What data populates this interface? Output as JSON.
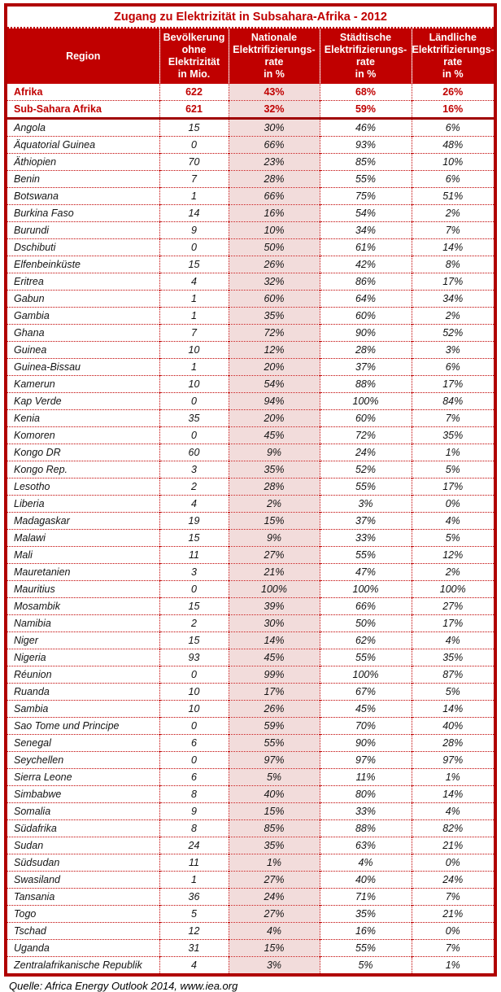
{
  "title": "Zugang zu Elektrizität in Subsahara-Afrika - 2012",
  "source_note": "Quelle: Africa Energy Outlook 2014, www.iea.org",
  "colors": {
    "header_bg": "#C00000",
    "accent_red": "#C00000",
    "summary_text": "#C00000",
    "highlight_column_bg": "#F2DCDB",
    "outer_border": "#B00000",
    "thick_separator": "#A00000"
  },
  "chart_data": {
    "type": "table",
    "title": "Zugang zu Elektrizität in Subsahara-Afrika - 2012",
    "columns": [
      "Region",
      "Bevölkerung ohne Elektrizität in Mio.",
      "Nationale Elektrifizierungsrate in %",
      "Städtische Elektrifizierungsrate in %",
      "Ländliche Elektrifizierungsrate in %"
    ],
    "header_lines": [
      [
        "Region"
      ],
      [
        "Bevölkerung",
        "ohne",
        "Elektrizität",
        "in Mio."
      ],
      [
        "Nationale",
        "Elektrifizierungs-",
        "rate",
        "in %"
      ],
      [
        "Städtische",
        "Elektrifizierungs-",
        "rate",
        "in %"
      ],
      [
        "Ländliche",
        "Elektrifizierungs-",
        "rate",
        "in %"
      ]
    ],
    "highlighted_column_index": 2,
    "summary_rows": [
      {
        "region": "Afrika",
        "values": [
          "622",
          "43%",
          "68%",
          "26%"
        ]
      },
      {
        "region": "Sub-Sahara Afrika",
        "values": [
          "621",
          "32%",
          "59%",
          "16%"
        ]
      }
    ],
    "rows": [
      {
        "region": "Angola",
        "values": [
          "15",
          "30%",
          "46%",
          "6%"
        ]
      },
      {
        "region": "Äquatorial Guinea",
        "values": [
          "0",
          "66%",
          "93%",
          "48%"
        ]
      },
      {
        "region": "Äthiopien",
        "values": [
          "70",
          "23%",
          "85%",
          "10%"
        ]
      },
      {
        "region": "Benin",
        "values": [
          "7",
          "28%",
          "55%",
          "6%"
        ]
      },
      {
        "region": "Botswana",
        "values": [
          "1",
          "66%",
          "75%",
          "51%"
        ]
      },
      {
        "region": "Burkina Faso",
        "values": [
          "14",
          "16%",
          "54%",
          "2%"
        ]
      },
      {
        "region": "Burundi",
        "values": [
          "9",
          "10%",
          "34%",
          "7%"
        ]
      },
      {
        "region": "Dschibuti",
        "values": [
          "0",
          "50%",
          "61%",
          "14%"
        ]
      },
      {
        "region": "Elfenbeinküste",
        "values": [
          "15",
          "26%",
          "42%",
          "8%"
        ]
      },
      {
        "region": "Eritrea",
        "values": [
          "4",
          "32%",
          "86%",
          "17%"
        ]
      },
      {
        "region": "Gabun",
        "values": [
          "1",
          "60%",
          "64%",
          "34%"
        ]
      },
      {
        "region": "Gambia",
        "values": [
          "1",
          "35%",
          "60%",
          "2%"
        ]
      },
      {
        "region": "Ghana",
        "values": [
          "7",
          "72%",
          "90%",
          "52%"
        ]
      },
      {
        "region": "Guinea",
        "values": [
          "10",
          "12%",
          "28%",
          "3%"
        ]
      },
      {
        "region": "Guinea-Bissau",
        "values": [
          "1",
          "20%",
          "37%",
          "6%"
        ]
      },
      {
        "region": "Kamerun",
        "values": [
          "10",
          "54%",
          "88%",
          "17%"
        ]
      },
      {
        "region": "Kap Verde",
        "values": [
          "0",
          "94%",
          "100%",
          "84%"
        ]
      },
      {
        "region": "Kenia",
        "values": [
          "35",
          "20%",
          "60%",
          "7%"
        ]
      },
      {
        "region": "Komoren",
        "values": [
          "0",
          "45%",
          "72%",
          "35%"
        ]
      },
      {
        "region": "Kongo DR",
        "values": [
          "60",
          "9%",
          "24%",
          "1%"
        ]
      },
      {
        "region": "Kongo Rep.",
        "values": [
          "3",
          "35%",
          "52%",
          "5%"
        ]
      },
      {
        "region": "Lesotho",
        "values": [
          "2",
          "28%",
          "55%",
          "17%"
        ]
      },
      {
        "region": "Liberia",
        "values": [
          "4",
          "2%",
          "3%",
          "0%"
        ]
      },
      {
        "region": "Madagaskar",
        "values": [
          "19",
          "15%",
          "37%",
          "4%"
        ]
      },
      {
        "region": "Malawi",
        "values": [
          "15",
          "9%",
          "33%",
          "5%"
        ]
      },
      {
        "region": "Mali",
        "values": [
          "11",
          "27%",
          "55%",
          "12%"
        ]
      },
      {
        "region": "Mauretanien",
        "values": [
          "3",
          "21%",
          "47%",
          "2%"
        ]
      },
      {
        "region": "Mauritius",
        "values": [
          "0",
          "100%",
          "100%",
          "100%"
        ]
      },
      {
        "region": "Mosambik",
        "values": [
          "15",
          "39%",
          "66%",
          "27%"
        ]
      },
      {
        "region": "Namibia",
        "values": [
          "2",
          "30%",
          "50%",
          "17%"
        ]
      },
      {
        "region": "Niger",
        "values": [
          "15",
          "14%",
          "62%",
          "4%"
        ]
      },
      {
        "region": "Nigeria",
        "values": [
          "93",
          "45%",
          "55%",
          "35%"
        ]
      },
      {
        "region": "Réunion",
        "values": [
          "0",
          "99%",
          "100%",
          "87%"
        ]
      },
      {
        "region": "Ruanda",
        "values": [
          "10",
          "17%",
          "67%",
          "5%"
        ]
      },
      {
        "region": "Sambia",
        "values": [
          "10",
          "26%",
          "45%",
          "14%"
        ]
      },
      {
        "region": "Sao Tome und Principe",
        "values": [
          "0",
          "59%",
          "70%",
          "40%"
        ]
      },
      {
        "region": "Senegal",
        "values": [
          "6",
          "55%",
          "90%",
          "28%"
        ]
      },
      {
        "region": "Seychellen",
        "values": [
          "0",
          "97%",
          "97%",
          "97%"
        ]
      },
      {
        "region": "Sierra Leone",
        "values": [
          "6",
          "5%",
          "11%",
          "1%"
        ]
      },
      {
        "region": "Simbabwe",
        "values": [
          "8",
          "40%",
          "80%",
          "14%"
        ]
      },
      {
        "region": "Somalia",
        "values": [
          "9",
          "15%",
          "33%",
          "4%"
        ]
      },
      {
        "region": "Südafrika",
        "values": [
          "8",
          "85%",
          "88%",
          "82%"
        ]
      },
      {
        "region": "Sudan",
        "values": [
          "24",
          "35%",
          "63%",
          "21%"
        ]
      },
      {
        "region": "Südsudan",
        "values": [
          "11",
          "1%",
          "4%",
          "0%"
        ]
      },
      {
        "region": "Swasiland",
        "values": [
          "1",
          "27%",
          "40%",
          "24%"
        ]
      },
      {
        "region": "Tansania",
        "values": [
          "36",
          "24%",
          "71%",
          "7%"
        ]
      },
      {
        "region": "Togo",
        "values": [
          "5",
          "27%",
          "35%",
          "21%"
        ]
      },
      {
        "region": "Tschad",
        "values": [
          "12",
          "4%",
          "16%",
          "0%"
        ]
      },
      {
        "region": "Uganda",
        "values": [
          "31",
          "15%",
          "55%",
          "7%"
        ]
      },
      {
        "region": "Zentralafrikanische Republik",
        "values": [
          "4",
          "3%",
          "5%",
          "1%"
        ]
      }
    ]
  }
}
